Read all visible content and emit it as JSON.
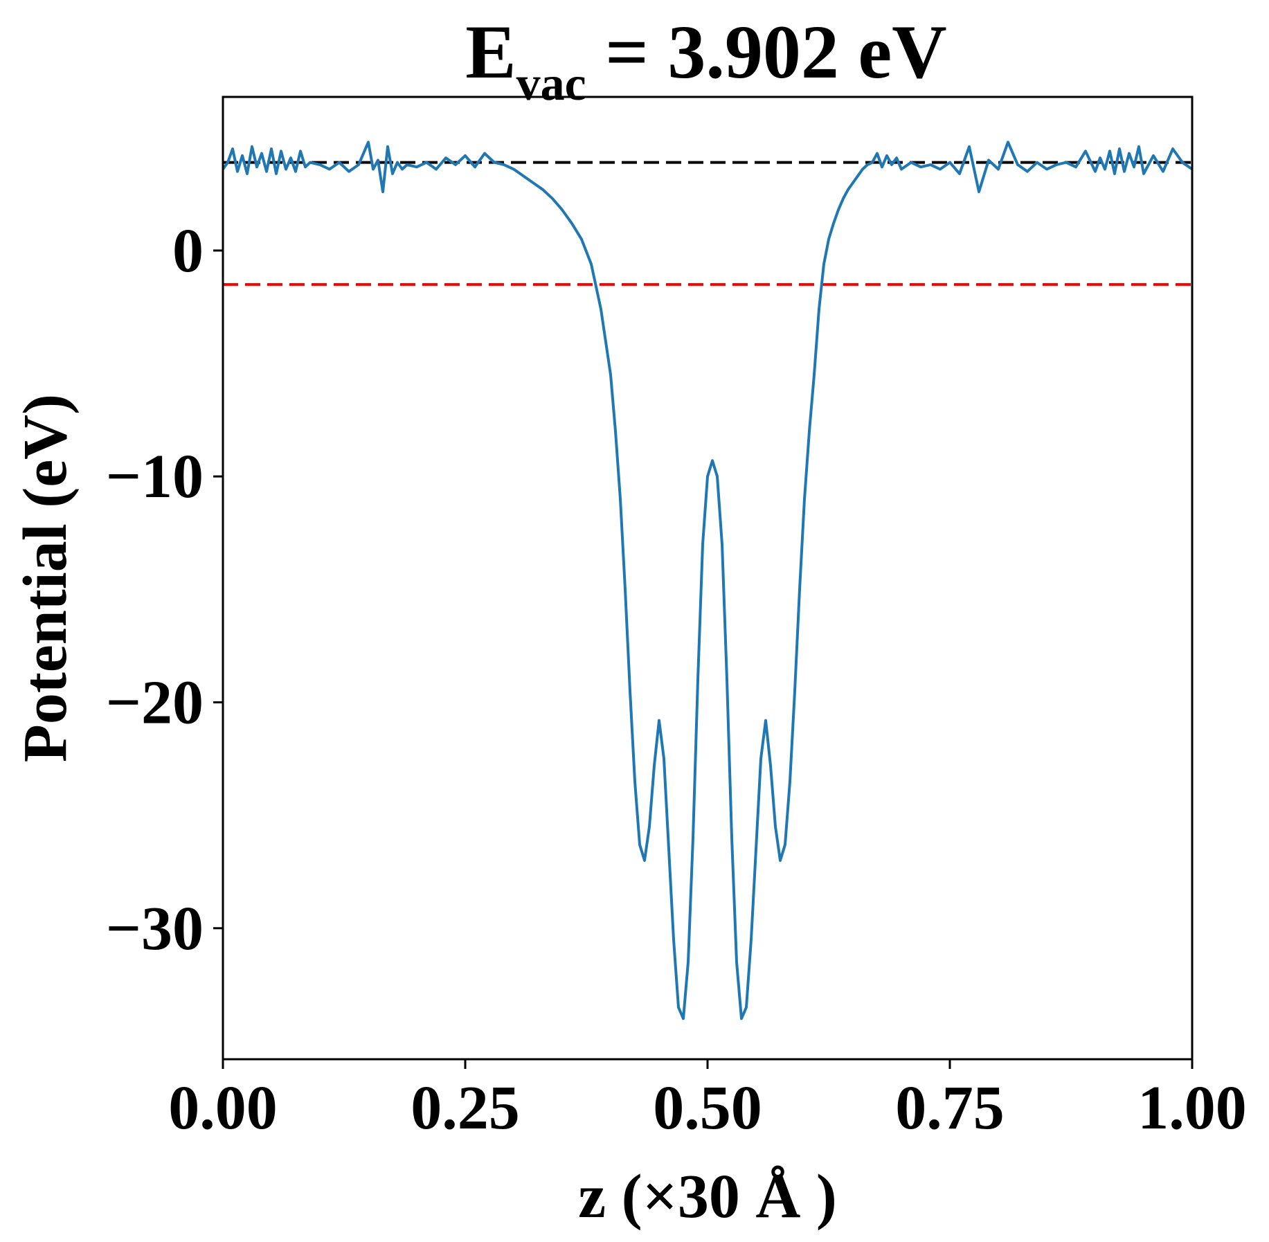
{
  "chart_data": {
    "type": "line",
    "title": {
      "main": "E",
      "subscript": "vac",
      "rest": " = 3.902 eV"
    },
    "xlabel": "z (×30 Å )",
    "ylabel": "Potential (eV)",
    "xlim": [
      0.0,
      1.0
    ],
    "ylim": [
      -35.8,
      6.8
    ],
    "xticks": [
      0.0,
      0.25,
      0.5,
      0.75,
      1.0
    ],
    "xtick_labels": [
      "0.00",
      "0.25",
      "0.50",
      "0.75",
      "1.00"
    ],
    "yticks": [
      0,
      -10,
      -20,
      -30
    ],
    "ytick_labels": [
      "0",
      "−10",
      "−20",
      "−30"
    ],
    "grid": false,
    "reference_lines": [
      {
        "y": 3.9,
        "color": "#000000",
        "style": "dashed"
      },
      {
        "y": -1.5,
        "color": "#ff0000",
        "style": "dashed"
      }
    ],
    "series": [
      {
        "color": "#1f77b4",
        "x": [
          0.0,
          0.005,
          0.01,
          0.015,
          0.02,
          0.025,
          0.03,
          0.035,
          0.04,
          0.045,
          0.05,
          0.055,
          0.06,
          0.065,
          0.07,
          0.075,
          0.08,
          0.085,
          0.09,
          0.1,
          0.11,
          0.12,
          0.13,
          0.14,
          0.15,
          0.155,
          0.16,
          0.165,
          0.17,
          0.175,
          0.18,
          0.185,
          0.19,
          0.2,
          0.21,
          0.22,
          0.23,
          0.24,
          0.25,
          0.26,
          0.27,
          0.28,
          0.29,
          0.3,
          0.31,
          0.32,
          0.33,
          0.34,
          0.35,
          0.36,
          0.37,
          0.38,
          0.39,
          0.4,
          0.405,
          0.41,
          0.415,
          0.42,
          0.425,
          0.43,
          0.435,
          0.44,
          0.445,
          0.45,
          0.455,
          0.46,
          0.465,
          0.47,
          0.475,
          0.48,
          0.485,
          0.49,
          0.495,
          0.5,
          0.505,
          0.51,
          0.515,
          0.52,
          0.525,
          0.53,
          0.535,
          0.54,
          0.545,
          0.55,
          0.555,
          0.56,
          0.565,
          0.57,
          0.575,
          0.58,
          0.585,
          0.59,
          0.595,
          0.6,
          0.605,
          0.61,
          0.615,
          0.62,
          0.625,
          0.63,
          0.635,
          0.64,
          0.645,
          0.65,
          0.655,
          0.66,
          0.665,
          0.67,
          0.675,
          0.68,
          0.685,
          0.69,
          0.695,
          0.7,
          0.71,
          0.72,
          0.73,
          0.74,
          0.75,
          0.76,
          0.77,
          0.78,
          0.79,
          0.8,
          0.81,
          0.82,
          0.83,
          0.84,
          0.85,
          0.86,
          0.87,
          0.88,
          0.89,
          0.9,
          0.905,
          0.91,
          0.915,
          0.92,
          0.925,
          0.93,
          0.935,
          0.94,
          0.945,
          0.95,
          0.96,
          0.97,
          0.98,
          0.99,
          1.0
        ],
        "y": [
          3.6,
          3.9,
          4.5,
          3.5,
          4.2,
          3.4,
          4.6,
          3.7,
          4.3,
          3.5,
          4.5,
          3.4,
          4.4,
          3.6,
          4.1,
          3.5,
          4.4,
          3.7,
          3.9,
          3.8,
          3.6,
          3.9,
          3.5,
          3.8,
          4.8,
          3.6,
          4.0,
          2.6,
          4.6,
          3.4,
          3.9,
          3.6,
          3.8,
          3.7,
          3.9,
          3.6,
          4.1,
          3.8,
          4.2,
          3.7,
          4.3,
          3.9,
          3.8,
          3.6,
          3.3,
          3.0,
          2.7,
          2.3,
          1.8,
          1.2,
          0.5,
          -0.6,
          -2.6,
          -5.5,
          -8.0,
          -11.0,
          -15.0,
          -19.5,
          -23.5,
          -26.3,
          -27.0,
          -25.5,
          -22.8,
          -20.8,
          -22.5,
          -26.5,
          -30.5,
          -33.5,
          -34.0,
          -31.5,
          -26.0,
          -19.0,
          -13.0,
          -10.0,
          -9.3,
          -10.0,
          -13.0,
          -19.0,
          -26.0,
          -31.5,
          -34.0,
          -33.5,
          -30.5,
          -26.5,
          -22.5,
          -20.8,
          -22.8,
          -25.5,
          -27.0,
          -26.3,
          -23.5,
          -19.5,
          -15.0,
          -11.0,
          -8.0,
          -5.5,
          -2.6,
          -0.6,
          0.5,
          1.2,
          1.8,
          2.3,
          2.7,
          3.0,
          3.3,
          3.6,
          3.8,
          3.9,
          4.3,
          3.7,
          4.2,
          3.8,
          4.1,
          3.6,
          3.9,
          3.7,
          3.8,
          3.6,
          3.9,
          3.4,
          4.6,
          2.6,
          4.0,
          3.6,
          4.8,
          3.8,
          3.5,
          3.9,
          3.6,
          3.8,
          3.9,
          3.7,
          4.4,
          3.5,
          4.1,
          3.6,
          4.4,
          3.4,
          4.5,
          3.5,
          4.3,
          3.7,
          4.6,
          3.4,
          4.2,
          3.5,
          4.5,
          3.9,
          3.6
        ]
      }
    ]
  }
}
